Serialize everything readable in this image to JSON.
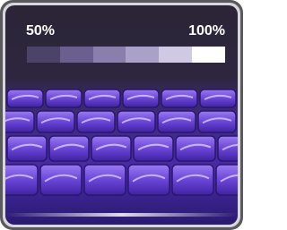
{
  "scale": {
    "min_label": "50%",
    "max_label": "100%"
  }
}
